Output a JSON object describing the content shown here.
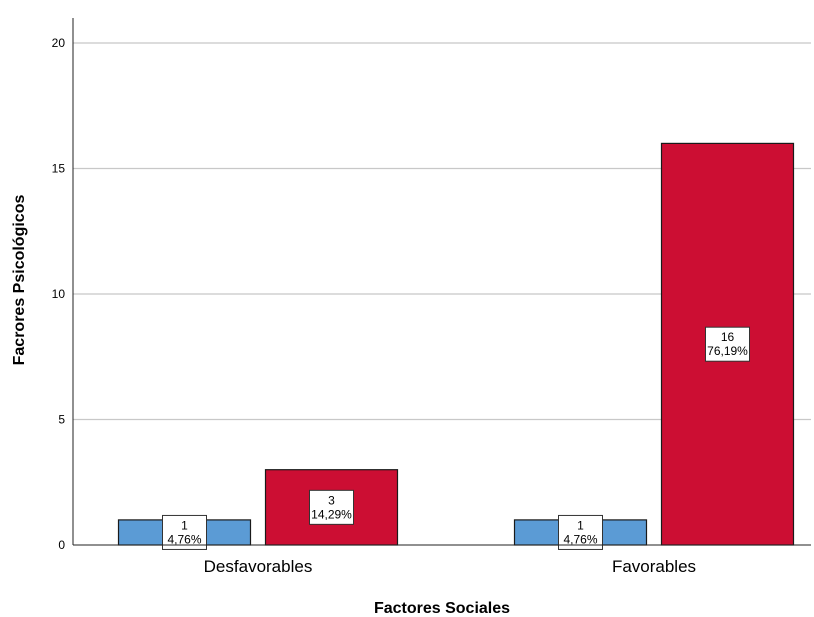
{
  "chart_data": {
    "type": "bar",
    "categories": [
      "Desfavorables",
      "Favorables"
    ],
    "series": [
      {
        "color": "#5b9bd5",
        "values": [
          1,
          1
        ],
        "labels": [
          [
            "1",
            "4,76%"
          ],
          [
            "1",
            "4,76%"
          ]
        ]
      },
      {
        "color": "#cc0e33",
        "values": [
          3,
          16
        ],
        "labels": [
          [
            "3",
            "14,29%"
          ],
          [
            "16",
            "76,19%"
          ]
        ]
      }
    ],
    "yticks": [
      "0",
      "5",
      "10",
      "15",
      "20"
    ],
    "ylim": [
      0,
      21
    ],
    "xlabel": "Factores Sociales",
    "ylabel": "Facrores Psicológicos",
    "grid": true
  }
}
